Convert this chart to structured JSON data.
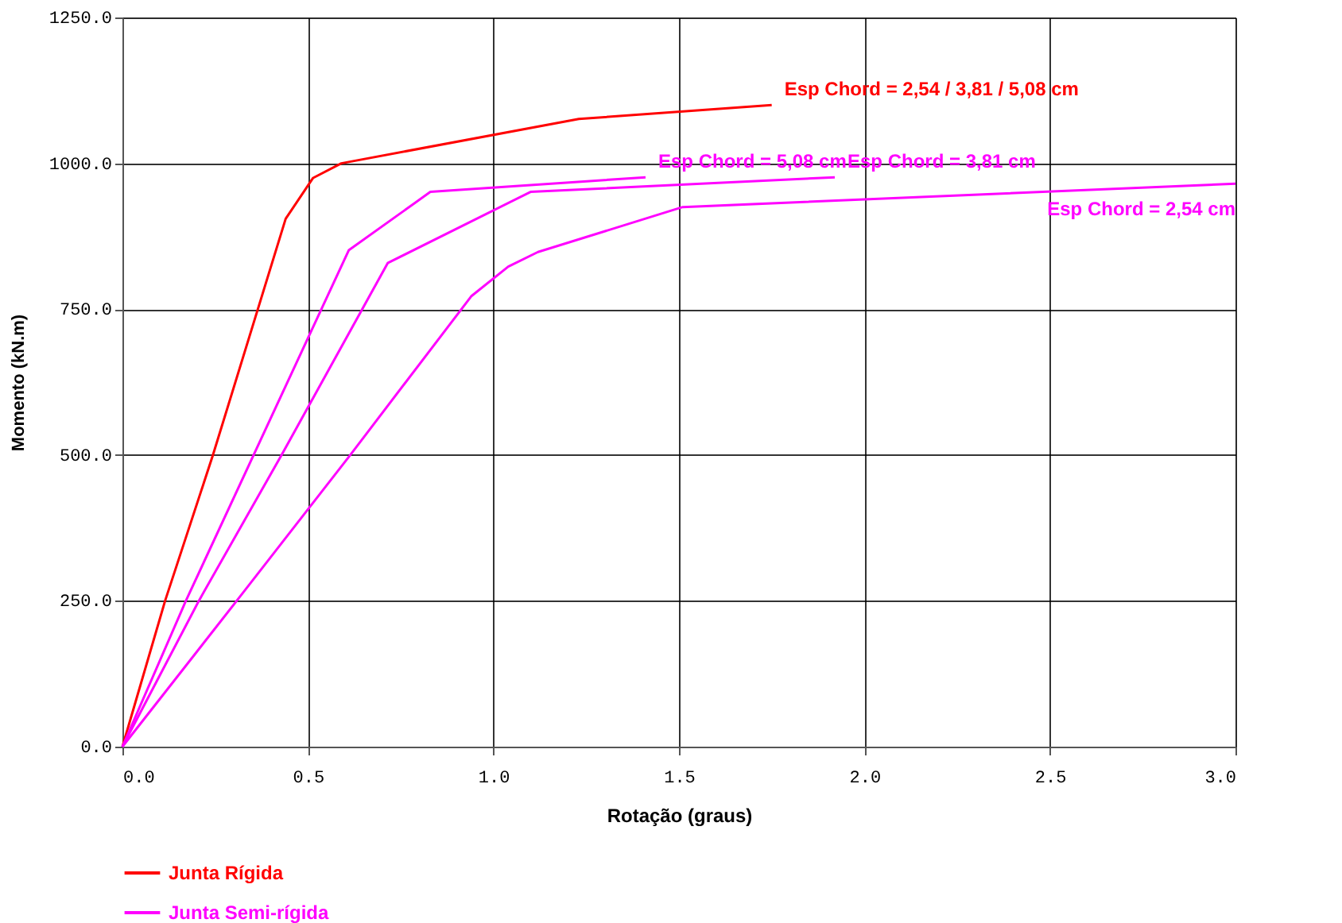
{
  "chart_data": {
    "type": "line",
    "xlabel": "Rotação (graus)",
    "ylabel": "Momento (kN.m)",
    "xlim": [
      0,
      3.0
    ],
    "ylim": [
      0,
      1250
    ],
    "xticks": [
      {
        "value": 0,
        "label": "0.0"
      },
      {
        "value": 0.5,
        "label": "0.5"
      },
      {
        "value": 1,
        "label": "1.0"
      },
      {
        "value": 1.5,
        "label": "1.5"
      },
      {
        "value": 2,
        "label": "2.0"
      },
      {
        "value": 2.5,
        "label": "2.5"
      },
      {
        "value": 3,
        "label": "3.0"
      }
    ],
    "yticks": [
      {
        "value": 0,
        "label": "0.0"
      },
      {
        "value": 250,
        "label": "250.0"
      },
      {
        "value": 500,
        "label": "500.0"
      },
      {
        "value": 750,
        "label": "750.0"
      },
      {
        "value": 1000,
        "label": "1000.0"
      },
      {
        "value": 1250,
        "label": "1250.0"
      }
    ],
    "grid": true,
    "legend": "bottom",
    "marker": "none",
    "line_style": "solid",
    "series": [
      {
        "name": "Junta Rígida",
        "color": "#ff0000",
        "x": [
          0,
          0.115,
          0.244,
          0.44,
          0.514,
          0.59,
          1.23,
          1.75
        ],
        "values": [
          0,
          250,
          500,
          905,
          975,
          1000,
          1076,
          1100
        ]
      },
      {
        "name": "Junta Semi-rígida",
        "color": "#ff00ff",
        "x": [
          0,
          0.171,
          0.61,
          0.83,
          1.41
        ],
        "values": [
          0,
          250,
          851,
          951,
          976
        ]
      },
      {
        "color": "#ff00ff",
        "x": [
          0,
          0.206,
          0.429,
          0.715,
          1.1,
          1.92
        ],
        "values": [
          0,
          250,
          500,
          829,
          951,
          976
        ]
      },
      {
        "color": "#ff00ff",
        "x": [
          0,
          0.308,
          0.614,
          0.94,
          1.04,
          1.12,
          1.51,
          3.0
        ],
        "values": [
          0,
          250,
          500,
          772,
          823,
          848,
          925,
          965
        ]
      }
    ],
    "annotations": [
      {
        "text": "Esp Chord = 2,54 / 3,81 / 5,08 cm",
        "x": 1.75,
        "y": 1100
      },
      {
        "text": "Esp Chord = 5,08 cm",
        "x": 1.41,
        "y": 976
      },
      {
        "text": "Esp Chord = 3,81 cm",
        "x": 1.92,
        "y": 976
      },
      {
        "text": "Esp Chord = 2,54 cm",
        "x": 3.0,
        "y": 965
      }
    ]
  }
}
